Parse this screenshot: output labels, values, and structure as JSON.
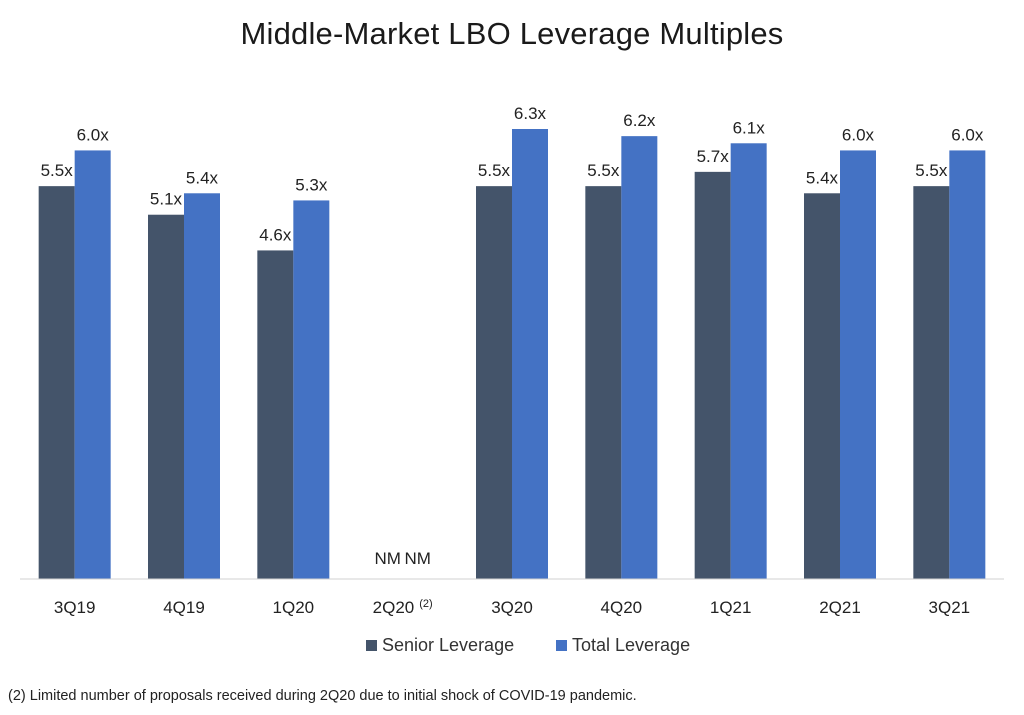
{
  "chart_data": {
    "type": "bar",
    "title": "Middle-Market LBO Leverage Multiples",
    "categories": [
      "3Q19",
      "4Q19",
      "1Q20",
      "2Q20",
      "3Q20",
      "4Q20",
      "1Q21",
      "2Q21",
      "3Q21"
    ],
    "category_note": {
      "2Q20": "(2)"
    },
    "series": [
      {
        "name": "Senior Leverage",
        "color": "#44546a",
        "values": [
          5.5,
          5.1,
          4.6,
          null,
          5.5,
          5.5,
          5.7,
          5.4,
          5.5
        ],
        "labels": [
          "5.5x",
          "5.1x",
          "4.6x",
          "NM",
          "5.5x",
          "5.5x",
          "5.7x",
          "5.4x",
          "5.5x"
        ]
      },
      {
        "name": "Total Leverage",
        "color": "#4472c4",
        "values": [
          6.0,
          5.4,
          5.3,
          null,
          6.3,
          6.2,
          6.1,
          6.0,
          6.0
        ],
        "labels": [
          "6.0x",
          "5.4x",
          "5.3x",
          "NM",
          "6.3x",
          "6.2x",
          "6.1x",
          "6.0x",
          "6.0x"
        ]
      }
    ],
    "ylim": [
      0,
      6.3
    ],
    "grid": false,
    "legend_position": "bottom"
  },
  "footnote": "(2) Limited number of proposals received during 2Q20 due to initial shock of COVID-19 pandemic."
}
